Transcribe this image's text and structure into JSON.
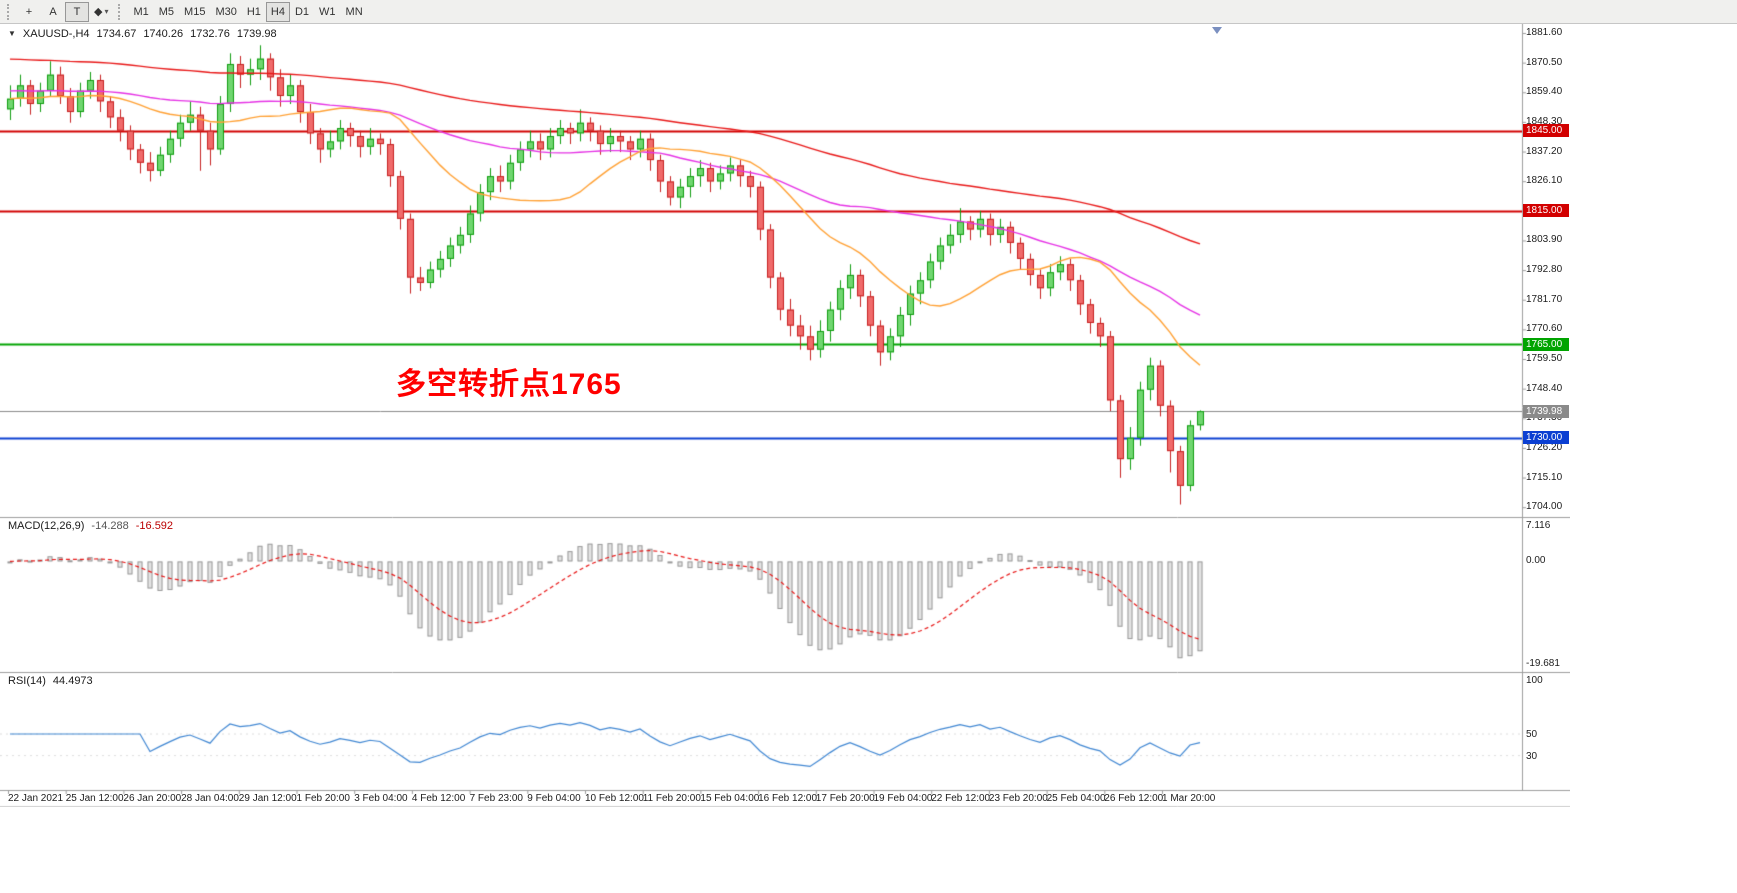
{
  "toolbar": {
    "tools": [
      {
        "id": "crosshair",
        "glyph": "+"
      },
      {
        "id": "text-label",
        "glyph": "A",
        "active": false
      },
      {
        "id": "text-box",
        "glyph": "T",
        "active": true
      },
      {
        "id": "shapes",
        "glyph": "◆",
        "caret": "▾"
      }
    ],
    "timeframes": [
      "M1",
      "M5",
      "M15",
      "M30",
      "H1",
      "H4",
      "D1",
      "W1",
      "MN"
    ],
    "active_timeframe": "H4"
  },
  "chart": {
    "info": {
      "marker": "▼",
      "symbol_tf": "XAUUSD-,H4",
      "open": "1734.67",
      "high": "1740.26",
      "low": "1732.76",
      "close": "1739.98"
    }
  },
  "chart_data": {
    "type": "candlestick",
    "symbol": "XAUUSD",
    "timeframe": "H4",
    "price_axis": {
      "max": 1881.6,
      "min": 1704.0,
      "step": 11.1,
      "labels": [
        "1881.60",
        "1870.50",
        "1859.40",
        "1848.30",
        "1837.20",
        "1826.10",
        "1815.00",
        "1803.90",
        "1792.80",
        "1781.70",
        "1770.60",
        "1759.50",
        "1748.40",
        "1737.30",
        "1726.20",
        "1715.10",
        "1704.00"
      ]
    },
    "candles": [
      [
        1853,
        1862,
        1849,
        1857
      ],
      [
        1857,
        1866,
        1854,
        1862
      ],
      [
        1862,
        1864,
        1851,
        1855
      ],
      [
        1855,
        1863,
        1852,
        1860
      ],
      [
        1860,
        1871,
        1858,
        1866
      ],
      [
        1866,
        1869,
        1855,
        1858
      ],
      [
        1858,
        1861,
        1848,
        1852
      ],
      [
        1852,
        1863,
        1850,
        1860
      ],
      [
        1860,
        1867,
        1857,
        1864
      ],
      [
        1864,
        1866,
        1852,
        1856
      ],
      [
        1856,
        1858,
        1846,
        1850
      ],
      [
        1850,
        1853,
        1841,
        1845
      ],
      [
        1845,
        1847,
        1834,
        1838
      ],
      [
        1838,
        1840,
        1829,
        1833
      ],
      [
        1833,
        1837,
        1826,
        1830
      ],
      [
        1830,
        1839,
        1828,
        1836
      ],
      [
        1836,
        1845,
        1833,
        1842
      ],
      [
        1842,
        1851,
        1839,
        1848
      ],
      [
        1848,
        1856,
        1845,
        1851
      ],
      [
        1851,
        1854,
        1830,
        1845
      ],
      [
        1845,
        1848,
        1832,
        1838
      ],
      [
        1838,
        1858,
        1836,
        1855
      ],
      [
        1855,
        1874,
        1852,
        1870
      ],
      [
        1870,
        1873,
        1861,
        1866
      ],
      [
        1866,
        1872,
        1862,
        1868
      ],
      [
        1868,
        1877,
        1864,
        1872
      ],
      [
        1872,
        1874,
        1860,
        1865
      ],
      [
        1865,
        1868,
        1854,
        1858
      ],
      [
        1858,
        1866,
        1855,
        1862
      ],
      [
        1862,
        1864,
        1848,
        1852
      ],
      [
        1852,
        1855,
        1840,
        1844
      ],
      [
        1844,
        1846,
        1833,
        1838
      ],
      [
        1838,
        1845,
        1835,
        1841
      ],
      [
        1841,
        1849,
        1838,
        1846
      ],
      [
        1846,
        1848,
        1839,
        1843
      ],
      [
        1843,
        1845,
        1835,
        1839
      ],
      [
        1839,
        1846,
        1836,
        1842
      ],
      [
        1842,
        1844,
        1836,
        1840
      ],
      [
        1840,
        1842,
        1824,
        1828
      ],
      [
        1828,
        1830,
        1808,
        1812
      ],
      [
        1812,
        1814,
        1784,
        1790
      ],
      [
        1790,
        1794,
        1785,
        1788
      ],
      [
        1788,
        1796,
        1786,
        1793
      ],
      [
        1793,
        1800,
        1790,
        1797
      ],
      [
        1797,
        1805,
        1794,
        1802
      ],
      [
        1802,
        1809,
        1799,
        1806
      ],
      [
        1806,
        1817,
        1803,
        1814
      ],
      [
        1814,
        1825,
        1811,
        1822
      ],
      [
        1822,
        1831,
        1819,
        1828
      ],
      [
        1828,
        1832,
        1822,
        1826
      ],
      [
        1826,
        1836,
        1823,
        1833
      ],
      [
        1833,
        1841,
        1830,
        1838
      ],
      [
        1838,
        1845,
        1835,
        1841
      ],
      [
        1841,
        1844,
        1834,
        1838
      ],
      [
        1838,
        1846,
        1835,
        1843
      ],
      [
        1843,
        1849,
        1840,
        1846
      ],
      [
        1846,
        1848,
        1840,
        1844
      ],
      [
        1844,
        1853,
        1841,
        1848
      ],
      [
        1848,
        1850,
        1841,
        1845
      ],
      [
        1845,
        1847,
        1836,
        1840
      ],
      [
        1840,
        1846,
        1837,
        1843
      ],
      [
        1843,
        1845,
        1837,
        1841
      ],
      [
        1841,
        1843,
        1834,
        1838
      ],
      [
        1838,
        1845,
        1835,
        1842
      ],
      [
        1842,
        1844,
        1830,
        1834
      ],
      [
        1834,
        1836,
        1822,
        1826
      ],
      [
        1826,
        1828,
        1817,
        1820
      ],
      [
        1820,
        1827,
        1816,
        1824
      ],
      [
        1824,
        1831,
        1820,
        1828
      ],
      [
        1828,
        1834,
        1824,
        1831
      ],
      [
        1831,
        1833,
        1822,
        1826
      ],
      [
        1826,
        1832,
        1823,
        1829
      ],
      [
        1829,
        1835,
        1826,
        1832
      ],
      [
        1832,
        1834,
        1824,
        1828
      ],
      [
        1828,
        1830,
        1820,
        1824
      ],
      [
        1824,
        1826,
        1804,
        1808
      ],
      [
        1808,
        1810,
        1786,
        1790
      ],
      [
        1790,
        1792,
        1774,
        1778
      ],
      [
        1778,
        1782,
        1768,
        1772
      ],
      [
        1772,
        1776,
        1763,
        1768
      ],
      [
        1768,
        1772,
        1759,
        1763
      ],
      [
        1763,
        1774,
        1760,
        1770
      ],
      [
        1770,
        1781,
        1766,
        1778
      ],
      [
        1778,
        1789,
        1774,
        1786
      ],
      [
        1786,
        1795,
        1782,
        1791
      ],
      [
        1791,
        1793,
        1779,
        1783
      ],
      [
        1783,
        1785,
        1768,
        1772
      ],
      [
        1772,
        1774,
        1757,
        1762
      ],
      [
        1762,
        1771,
        1759,
        1768
      ],
      [
        1768,
        1779,
        1764,
        1776
      ],
      [
        1776,
        1787,
        1772,
        1784
      ],
      [
        1784,
        1792,
        1780,
        1789
      ],
      [
        1789,
        1799,
        1786,
        1796
      ],
      [
        1796,
        1805,
        1793,
        1802
      ],
      [
        1802,
        1810,
        1799,
        1806
      ],
      [
        1806,
        1816,
        1803,
        1811
      ],
      [
        1811,
        1813,
        1804,
        1808
      ],
      [
        1808,
        1815,
        1805,
        1812
      ],
      [
        1812,
        1814,
        1802,
        1806
      ],
      [
        1806,
        1812,
        1803,
        1809
      ],
      [
        1809,
        1811,
        1799,
        1803
      ],
      [
        1803,
        1805,
        1793,
        1797
      ],
      [
        1797,
        1799,
        1787,
        1791
      ],
      [
        1791,
        1793,
        1782,
        1786
      ],
      [
        1786,
        1795,
        1783,
        1792
      ],
      [
        1792,
        1798,
        1789,
        1795
      ],
      [
        1795,
        1797,
        1785,
        1789
      ],
      [
        1789,
        1791,
        1776,
        1780
      ],
      [
        1780,
        1782,
        1769,
        1773
      ],
      [
        1773,
        1775,
        1764,
        1768
      ],
      [
        1768,
        1770,
        1740,
        1744
      ],
      [
        1744,
        1746,
        1715,
        1722
      ],
      [
        1722,
        1734,
        1718,
        1730
      ],
      [
        1730,
        1751,
        1727,
        1748
      ],
      [
        1748,
        1760,
        1744,
        1757
      ],
      [
        1757,
        1759,
        1738,
        1742
      ],
      [
        1742,
        1744,
        1717,
        1725
      ],
      [
        1725,
        1727,
        1705,
        1712
      ],
      [
        1712,
        1736.5,
        1710,
        1734.67
      ],
      [
        1734.67,
        1740.26,
        1732.76,
        1739.98
      ]
    ],
    "ma_lines": [
      {
        "name": "slow-ma",
        "period": 90,
        "seed": 1872,
        "color": "#e81717"
      },
      {
        "name": "mid-ma",
        "period": 45,
        "seed": 1860,
        "color": "#e531e5"
      },
      {
        "name": "fast-ma",
        "period": 18,
        "color": "#ffa033"
      }
    ],
    "levels": [
      {
        "price": 1845.0,
        "label": "1845.00",
        "color": "#d20000",
        "width": 2
      },
      {
        "price": 1815.0,
        "label": "1815.00",
        "color": "#d20000",
        "width": 2
      },
      {
        "price": 1765.0,
        "label": "1765.00",
        "color": "#00a400",
        "width": 2
      },
      {
        "price": 1739.98,
        "label": "1739.98",
        "color": "#8a8a8a",
        "width": 1,
        "role": "bid-price"
      },
      {
        "price": 1730.0,
        "label": "1730.00",
        "color": "#0b3fd2",
        "width": 2
      }
    ],
    "annotation": {
      "text": "多空转折点1765",
      "color": "#ff0000"
    },
    "colors": {
      "bull_fill": "#6fd66f",
      "bull_stroke": "#0f9d0f",
      "bear_fill": "#f06a6a",
      "bear_stroke": "#c62020"
    },
    "macd": {
      "title": "MACD(12,26,9)",
      "main_value": "-14.288",
      "signal_value": "-16.592",
      "scale_top": "7.116",
      "scale_zero": "0.00",
      "scale_bottom": "-19.681",
      "histogram_fill": "#e4e4e4",
      "histogram_stroke": "#9a9a9a",
      "signal_color": "#e81717"
    },
    "rsi": {
      "title": "RSI(14)",
      "value": "44.4973",
      "scale": [
        "100",
        "50",
        "30"
      ],
      "level_lines": [
        50,
        30
      ],
      "color": "#3f86d2"
    },
    "time_axis": [
      "22 Jan 2021",
      "25 Jan 12:00",
      "26 Jan 20:00",
      "28 Jan 04:00",
      "29 Jan 12:00",
      "1 Feb 20:00",
      "3 Feb 04:00",
      "4 Feb 12:00",
      "7 Feb 23:00",
      "9 Feb 04:00",
      "10 Feb 12:00",
      "11 Feb 20:00",
      "15 Feb 04:00",
      "16 Feb 12:00",
      "17 Feb 20:00",
      "19 Feb 04:00",
      "22 Feb 12:00",
      "23 Feb 20:00",
      "25 Feb 04:00",
      "26 Feb 12:00",
      "1 Mar 20:00"
    ]
  }
}
